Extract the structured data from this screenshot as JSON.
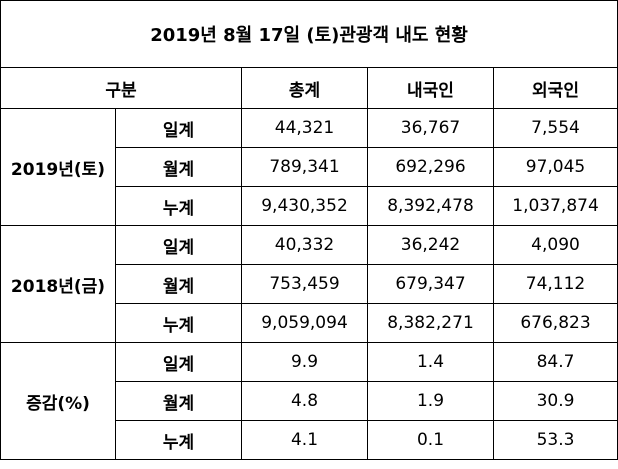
{
  "title": "2019년 8월 17일 (토)관광객 내도 현황",
  "header": {
    "label": "구분",
    "columns": [
      "총계",
      "내국인",
      "외국인"
    ]
  },
  "groups": [
    {
      "label": "2019년(토)",
      "rows": [
        {
          "label": "일계",
          "cells": [
            "44,321",
            "36,767",
            "7,554"
          ]
        },
        {
          "label": "월계",
          "cells": [
            "789,341",
            "692,296",
            "97,045"
          ]
        },
        {
          "label": "누계",
          "cells": [
            "9,430,352",
            "8,392,478",
            "1,037,874"
          ]
        }
      ]
    },
    {
      "label": "2018년(금)",
      "rows": [
        {
          "label": "일계",
          "cells": [
            "40,332",
            "36,242",
            "4,090"
          ]
        },
        {
          "label": "월계",
          "cells": [
            "753,459",
            "679,347",
            "74,112"
          ]
        },
        {
          "label": "누계",
          "cells": [
            "9,059,094",
            "8,382,271",
            "676,823"
          ]
        }
      ]
    },
    {
      "label": "증감(%)",
      "rows": [
        {
          "label": "일계",
          "cells": [
            "9.9",
            "1.4",
            "84.7"
          ]
        },
        {
          "label": "월계",
          "cells": [
            "4.8",
            "1.9",
            "30.9"
          ]
        },
        {
          "label": "누계",
          "cells": [
            "4.1",
            "0.1",
            "53.3"
          ]
        }
      ]
    }
  ]
}
